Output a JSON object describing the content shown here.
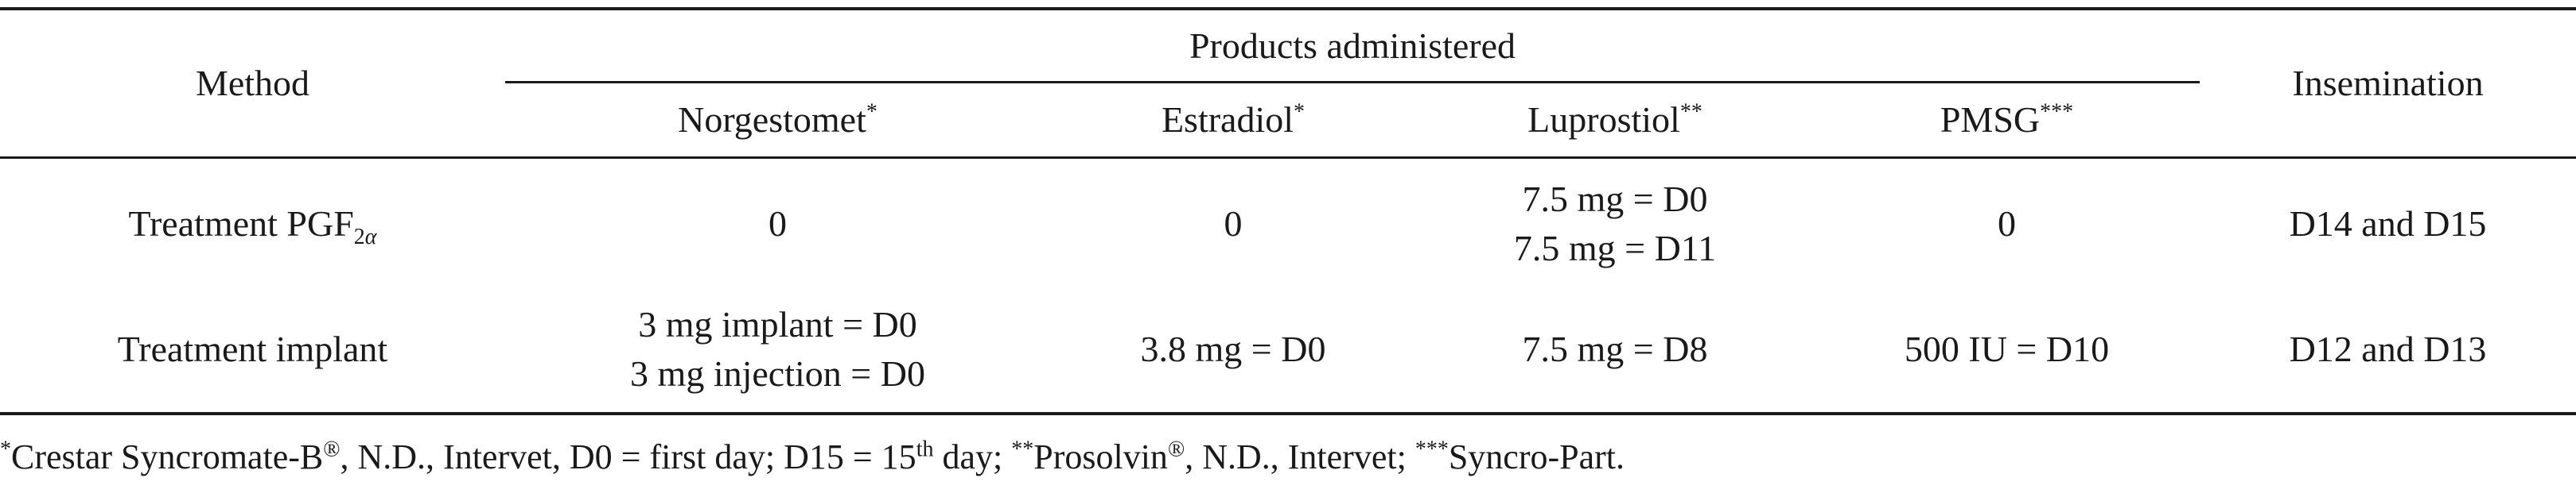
{
  "table": {
    "header": {
      "method": "Method",
      "group": "Products administered",
      "insemination": "Insemination",
      "columns": [
        {
          "label": "Norgestomet",
          "mark": "*"
        },
        {
          "label": "Estradiol",
          "mark": "*"
        },
        {
          "label": "Luprostiol",
          "mark": "**"
        },
        {
          "label": "PMSG",
          "mark": "***"
        }
      ]
    },
    "rows": [
      {
        "method": {
          "text": "Treatment PGF",
          "sub_main": "2",
          "sub_greek": "α"
        },
        "norgestomet": [
          "0"
        ],
        "estradiol": [
          "0"
        ],
        "luprostiol": [
          "7.5 mg = D0",
          "7.5 mg = D11"
        ],
        "pmsg": [
          "0"
        ],
        "insemination": "D14 and D15"
      },
      {
        "method": {
          "text": "Treatment implant"
        },
        "norgestomet": [
          "3 mg implant = D0",
          "3 mg injection = D0"
        ],
        "estradiol": [
          "3.8 mg = D0"
        ],
        "luprostiol": [
          "7.5 mg = D8"
        ],
        "pmsg": [
          "500 IU = D10"
        ],
        "insemination": "D12 and D13"
      }
    ]
  },
  "footnote": {
    "m1": "*",
    "t1": "Crestar Syncromate-B",
    "reg1": "®",
    "t2": ", N.D., Intervet, D0 = first day; D15 = 15",
    "th": "th",
    "t3": " day; ",
    "m2": "**",
    "t4": "Prosolvin",
    "reg2": "®",
    "t5": ", N.D., Intervet; ",
    "m3": "***",
    "t6": "Syncro-Part."
  }
}
